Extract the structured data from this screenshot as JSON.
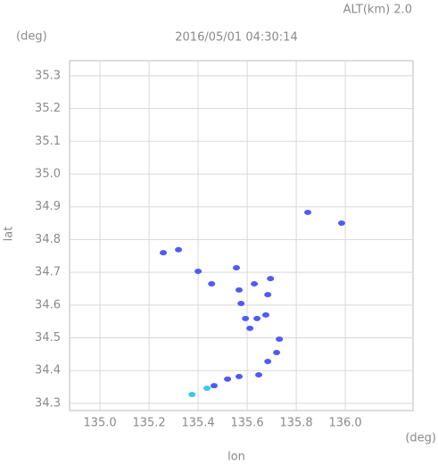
{
  "chart_data": {
    "type": "scatter",
    "title": "2016/05/01 04:30:14",
    "subtitle": "ALT(km) 2.0",
    "y_unit": "(deg)",
    "x_unit": "(deg)",
    "x_label": "lon",
    "y_label": "lat",
    "xlim": [
      134.876,
      136.276
    ],
    "ylim": [
      34.278,
      35.346
    ],
    "xticks": [
      {
        "value": 135.0,
        "label": "135.0"
      },
      135.2,
      135.4,
      135.6,
      135.8,
      {
        "value": 136.0,
        "label": "136.0"
      }
    ],
    "yticks": [
      34.3,
      34.4,
      34.5,
      34.6,
      34.7,
      34.8,
      34.9,
      {
        "value": 35.0,
        "label": "35.0"
      },
      35.1,
      35.2,
      35.3
    ],
    "grid": true,
    "series": [
      {
        "color": "#4f5bf5",
        "x": [
          135.847,
          135.985,
          135.258,
          135.32,
          135.4,
          135.455,
          135.556,
          135.567,
          135.629,
          135.695,
          135.684,
          135.575,
          135.593,
          135.64,
          135.676,
          135.611,
          135.731,
          135.72,
          135.684,
          135.647,
          135.567,
          135.52,
          135.465
        ],
        "values": [
          34.883,
          34.85,
          34.76,
          34.769,
          34.703,
          34.665,
          34.714,
          34.646,
          34.665,
          34.681,
          34.632,
          34.605,
          34.559,
          34.559,
          34.57,
          34.529,
          34.496,
          34.455,
          34.428,
          34.387,
          34.382,
          34.374,
          34.354
        ]
      },
      {
        "color": "#3cc8f0",
        "x": [
          135.436,
          135.375
        ],
        "values": [
          34.346,
          34.327
        ]
      }
    ]
  }
}
